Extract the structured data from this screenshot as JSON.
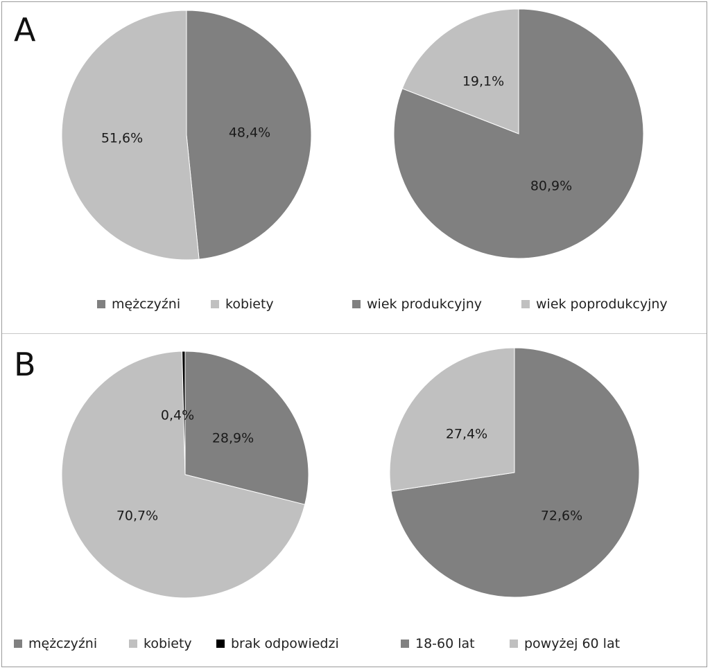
{
  "panels": [
    {
      "letter": "A"
    },
    {
      "letter": "B"
    }
  ],
  "chart_data": [
    {
      "type": "pie",
      "panel": "A",
      "slices": [
        {
          "label": "mężczyźni",
          "value": 48.4,
          "display": "48,4%",
          "color": "#808080"
        },
        {
          "label": "kobiety",
          "value": 51.6,
          "display": "51,6%",
          "color": "#c0c0c0"
        }
      ],
      "legend": [
        "mężczyźni",
        "kobiety"
      ]
    },
    {
      "type": "pie",
      "panel": "A",
      "slices": [
        {
          "label": "wiek produkcyjny",
          "value": 80.9,
          "display": "80,9%",
          "color": "#808080"
        },
        {
          "label": "wiek poprodukcyjny",
          "value": 19.1,
          "display": "19,1%",
          "color": "#c0c0c0"
        }
      ],
      "legend": [
        "wiek produkcyjny",
        "wiek poprodukcyjny"
      ]
    },
    {
      "type": "pie",
      "panel": "B",
      "slices": [
        {
          "label": "mężczyźni",
          "value": 28.9,
          "display": "28,9%",
          "color": "#808080"
        },
        {
          "label": "kobiety",
          "value": 70.7,
          "display": "70,7%",
          "color": "#c0c0c0"
        },
        {
          "label": "brak odpowiedzi",
          "value": 0.4,
          "display": "0,4%",
          "color": "#000000"
        }
      ],
      "legend": [
        "mężczyźni",
        "kobiety",
        "brak odpowiedzi"
      ]
    },
    {
      "type": "pie",
      "panel": "B",
      "slices": [
        {
          "label": "18-60 lat",
          "value": 72.6,
          "display": "72,6%",
          "color": "#808080"
        },
        {
          "label": "powyżej 60 lat",
          "value": 27.4,
          "display": "27,4%",
          "color": "#c0c0c0"
        }
      ],
      "legend": [
        "18-60 lat",
        "powyżej 60 lat"
      ]
    }
  ]
}
